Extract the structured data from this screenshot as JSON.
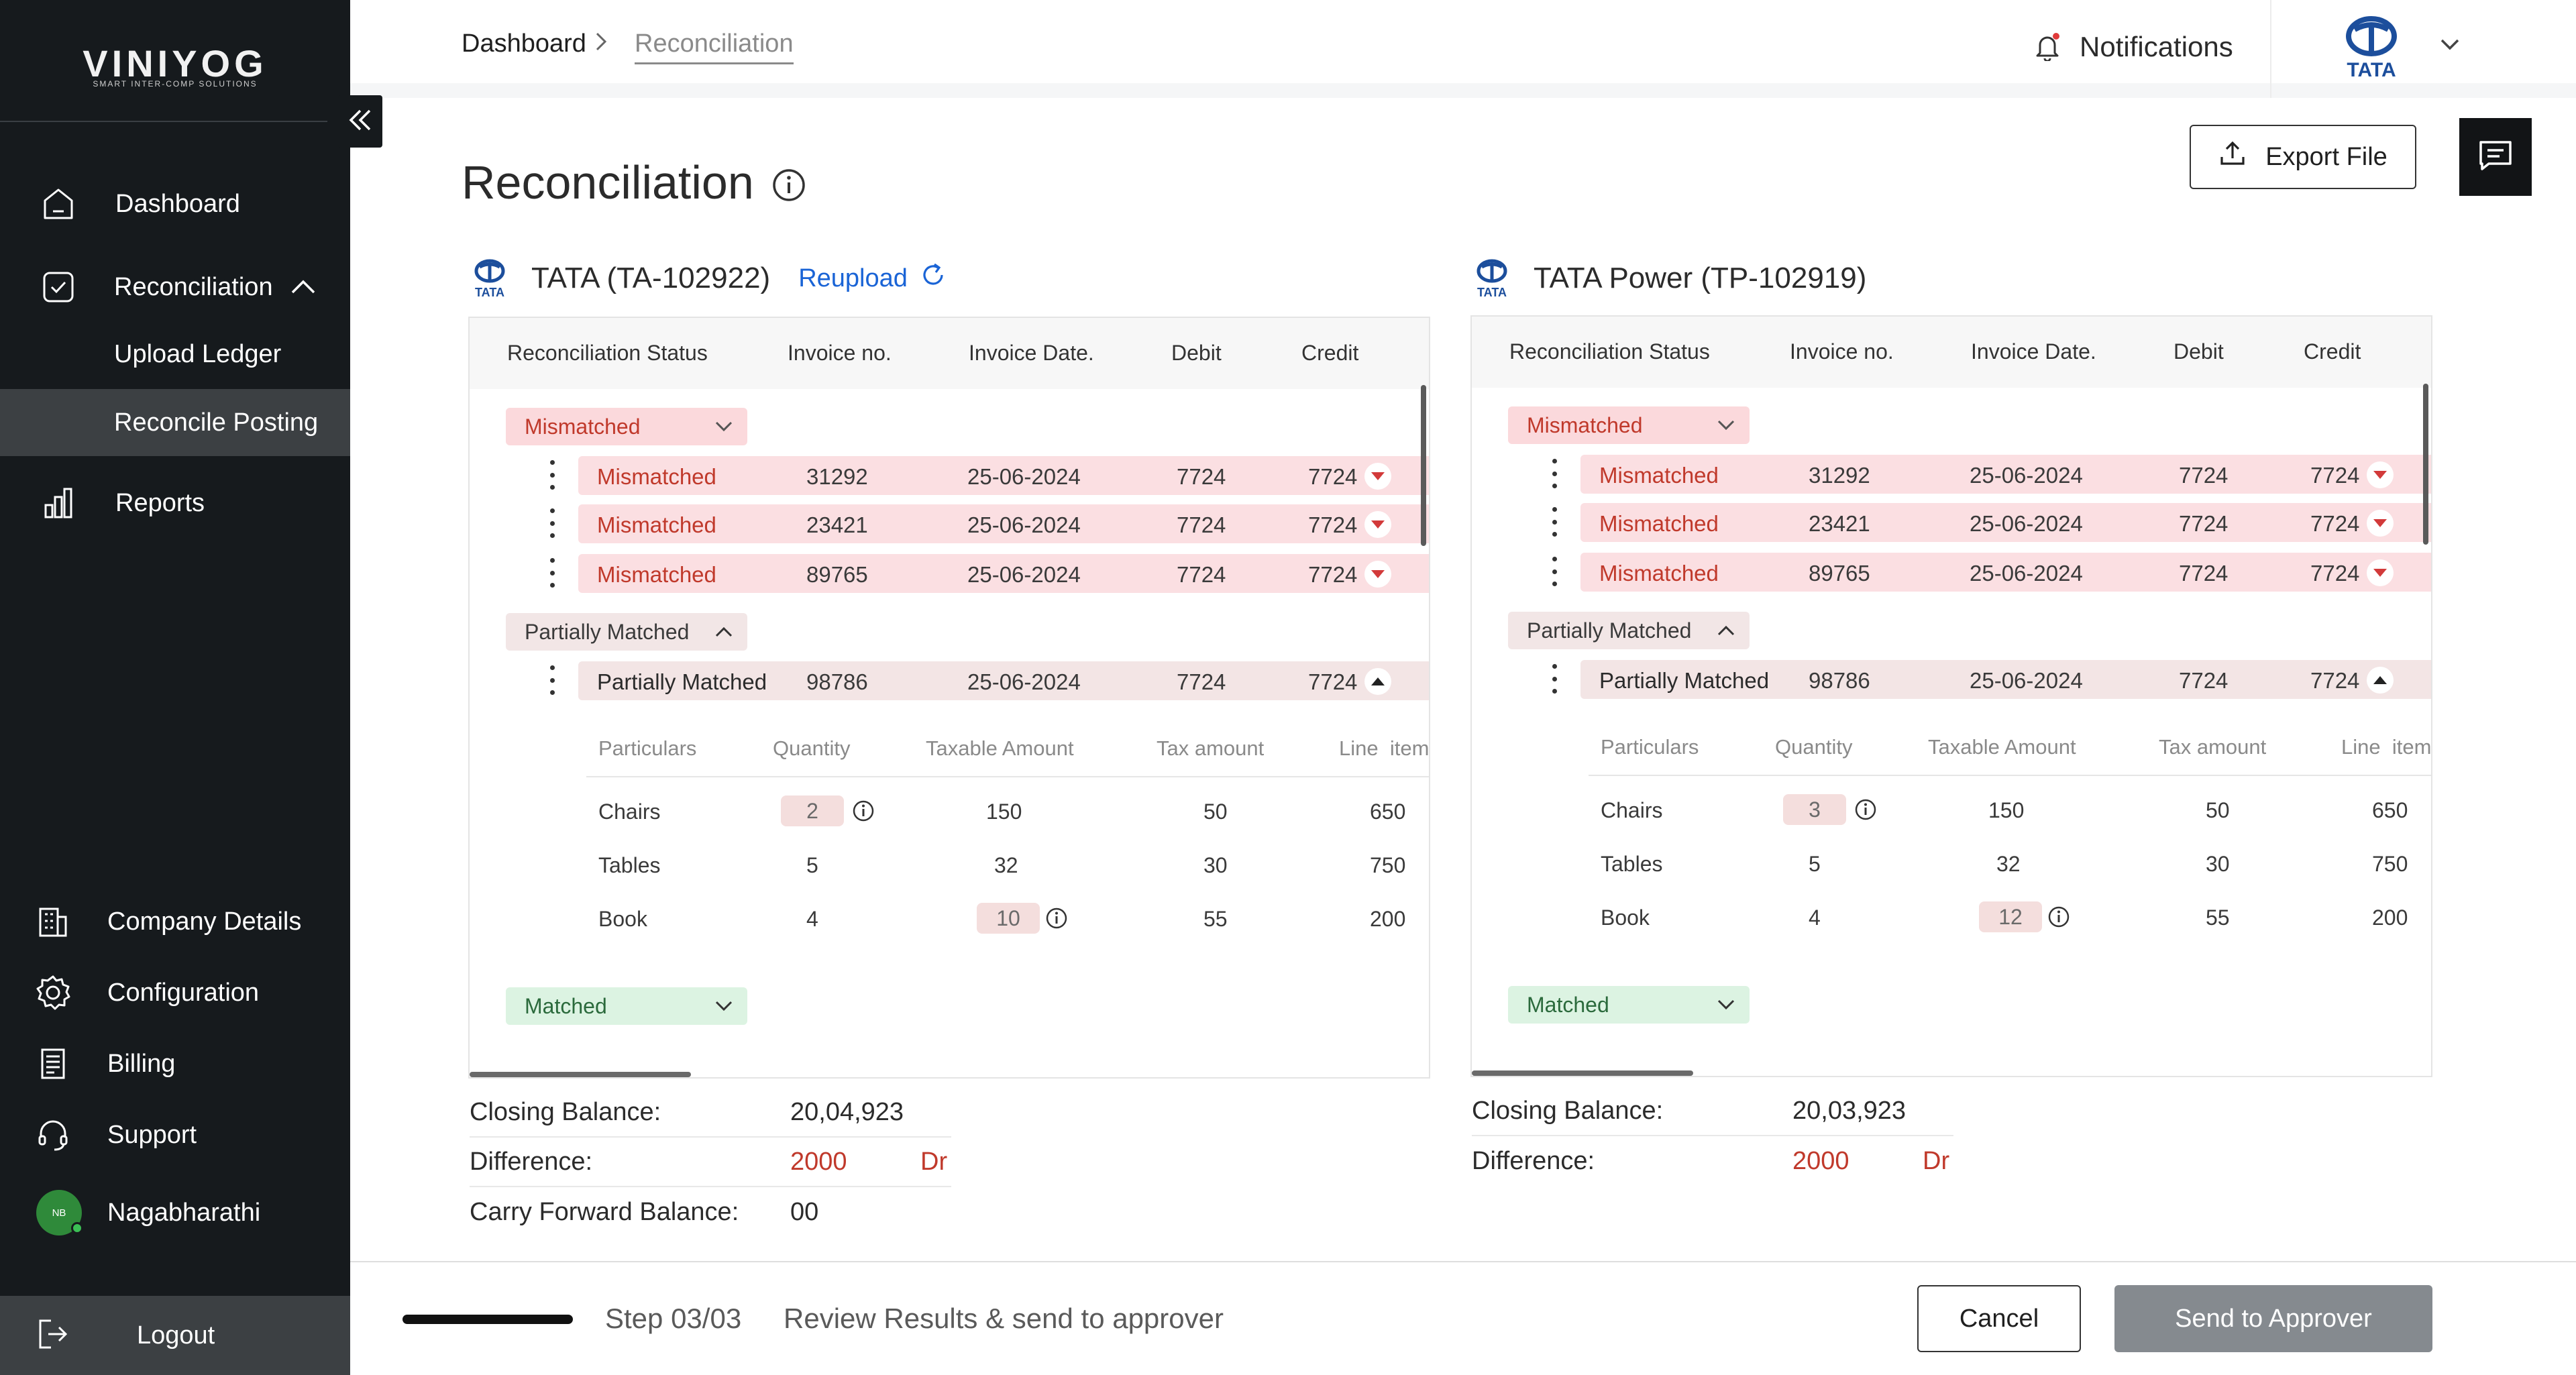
{
  "brand": {
    "name": "VINIYOG",
    "tagline": "SMART INTER-COMP SOLUTIONS"
  },
  "sidebar": {
    "items": [
      {
        "label": "Dashboard",
        "icon": "home-icon"
      },
      {
        "label": "Reconciliation",
        "icon": "check-square-icon"
      },
      {
        "label": "Upload Ledger"
      },
      {
        "label": "Reconcile Posting"
      },
      {
        "label": "Reports",
        "icon": "bar-chart-icon"
      }
    ],
    "lower_items": [
      {
        "label": "Company Details",
        "icon": "building-icon"
      },
      {
        "label": "Configuration",
        "icon": "gear-icon"
      },
      {
        "label": "Billing",
        "icon": "receipt-icon"
      },
      {
        "label": "Support",
        "icon": "headset-icon"
      }
    ],
    "user": {
      "initials": "NB",
      "name": "Nagabharathi"
    },
    "logout": "Logout"
  },
  "header": {
    "breadcrumb_home": "Dashboard",
    "breadcrumb_current": "Reconciliation",
    "notifications": "Notifications",
    "client_logo_text": "TATA"
  },
  "page": {
    "title": "Reconciliation",
    "export_label": "Export File"
  },
  "columns": [
    "Reconciliation Status",
    "Invoice no.",
    "Invoice Date.",
    "Debit",
    "Credit"
  ],
  "detail_columns": [
    "Particulars",
    "Quantity",
    "Taxable Amount",
    "Tax amount",
    "Line  item"
  ],
  "groups": {
    "mismatched": "Mismatched",
    "partial": "Partially Matched",
    "matched": "Matched"
  },
  "left": {
    "name": "TATA (TA-102922)",
    "reupload": "Reupload",
    "rows": [
      {
        "status": "Mismatched",
        "invoice": "31292",
        "date": "25-06-2024",
        "debit": "7724",
        "credit": "7724"
      },
      {
        "status": "Mismatched",
        "invoice": "23421",
        "date": "25-06-2024",
        "debit": "7724",
        "credit": "7724"
      },
      {
        "status": "Mismatched",
        "invoice": "89765",
        "date": "25-06-2024",
        "debit": "7724",
        "credit": "7724"
      }
    ],
    "partial_row": {
      "status": "Partially Matched",
      "invoice": "98786",
      "date": "25-06-2024",
      "debit": "7724",
      "credit": "7724"
    },
    "details": [
      {
        "particular": "Chairs",
        "qty": "2",
        "taxable": "150",
        "tax": "50",
        "line": "650"
      },
      {
        "particular": "Tables",
        "qty": "5",
        "taxable": "32",
        "tax": "30",
        "line": "750"
      },
      {
        "particular": "Book",
        "qty": "4",
        "taxable": "10",
        "tax": "55",
        "line": "200"
      }
    ],
    "closing_label": "Closing Balance:",
    "closing_value": "20,04,923",
    "difference_label": "Difference:",
    "difference_value": "2000",
    "difference_unit": "Dr",
    "carry_label": "Carry Forward Balance:",
    "carry_value": "00"
  },
  "right": {
    "name": "TATA Power (TP-102919)",
    "rows": [
      {
        "status": "Mismatched",
        "invoice": "31292",
        "date": "25-06-2024",
        "debit": "7724",
        "credit": "7724"
      },
      {
        "status": "Mismatched",
        "invoice": "23421",
        "date": "25-06-2024",
        "debit": "7724",
        "credit": "7724"
      },
      {
        "status": "Mismatched",
        "invoice": "89765",
        "date": "25-06-2024",
        "debit": "7724",
        "credit": "7724"
      }
    ],
    "partial_row": {
      "status": "Partially Matched",
      "invoice": "98786",
      "date": "25-06-2024",
      "debit": "7724",
      "credit": "7724"
    },
    "details": [
      {
        "particular": "Chairs",
        "qty": "3",
        "taxable": "150",
        "tax": "50",
        "line": "650"
      },
      {
        "particular": "Tables",
        "qty": "5",
        "taxable": "32",
        "tax": "30",
        "line": "750"
      },
      {
        "particular": "Book",
        "qty": "4",
        "taxable": "12",
        "tax": "55",
        "line": "200"
      }
    ],
    "closing_label": "Closing Balance:",
    "closing_value": "20,03,923",
    "difference_label": "Difference:",
    "difference_value": "2000",
    "difference_unit": "Dr"
  },
  "footer": {
    "step": "Step 03/03",
    "description": "Review Results & send to approver",
    "cancel": "Cancel",
    "approve": "Send to Approver"
  },
  "colors": {
    "sidebar": "#161a1d",
    "mismatch": "#c0392b",
    "link": "#1a64d6",
    "brand_blue": "#1c4e9c"
  }
}
